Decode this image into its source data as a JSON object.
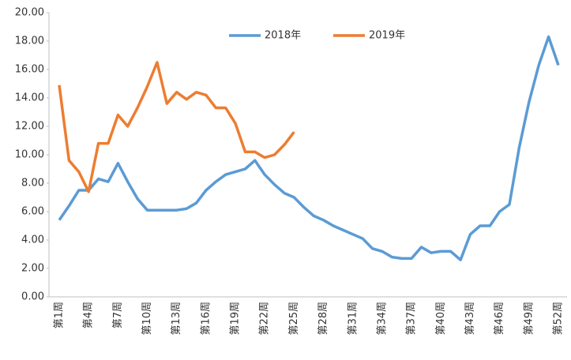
{
  "chart_data": {
    "type": "line",
    "categories": [
      "第1周",
      null,
      null,
      "第4周",
      null,
      null,
      "第7周",
      null,
      null,
      "第10周",
      null,
      null,
      "第13周",
      null,
      null,
      "第16周",
      null,
      null,
      "第19周",
      null,
      null,
      "第22周",
      null,
      null,
      "第25周",
      null,
      null,
      "第28周",
      null,
      null,
      "第31周",
      null,
      null,
      "第34周",
      null,
      null,
      "第37周",
      null,
      null,
      "第40周",
      null,
      null,
      "第43周",
      null,
      null,
      "第46周",
      null,
      null,
      "第49周",
      null,
      null,
      "第52周"
    ],
    "series": [
      {
        "name": "2018年",
        "color": "#5b9bd5",
        "values": [
          5.4,
          6.4,
          7.5,
          7.5,
          8.3,
          8.1,
          9.4,
          8.1,
          6.9,
          6.1,
          6.1,
          6.1,
          6.1,
          6.2,
          6.6,
          7.5,
          8.1,
          8.6,
          8.8,
          9.0,
          9.6,
          8.6,
          7.9,
          7.3,
          7.0,
          6.3,
          5.7,
          5.4,
          5.0,
          4.7,
          4.4,
          4.1,
          3.4,
          3.2,
          2.8,
          2.7,
          2.7,
          3.5,
          3.1,
          3.2,
          3.2,
          2.6,
          4.4,
          5.0,
          5.0,
          6.0,
          6.5,
          10.5,
          13.7,
          16.3,
          18.3,
          16.3
        ]
      },
      {
        "name": "2019年",
        "color": "#ed7d31",
        "values": [
          14.9,
          9.6,
          8.8,
          7.4,
          10.8,
          10.8,
          12.8,
          12.0,
          13.3,
          14.8,
          16.5,
          13.6,
          14.4,
          13.9,
          14.4,
          14.2,
          13.3,
          13.3,
          12.2,
          10.2,
          10.2,
          9.8,
          10.0,
          10.7,
          11.6,
          null,
          null,
          null,
          null,
          null,
          null,
          null,
          null,
          null,
          null,
          null,
          null,
          null,
          null,
          null,
          null,
          null,
          null,
          null,
          null,
          null,
          null,
          null,
          null,
          null,
          null,
          null
        ]
      }
    ],
    "ylim": [
      0,
      20
    ],
    "yticks": [
      {
        "value": 0,
        "label": "0.00"
      },
      {
        "value": 2,
        "label": "2.00"
      },
      {
        "value": 4,
        "label": "4.00"
      },
      {
        "value": 6,
        "label": "6.00"
      },
      {
        "value": 8,
        "label": "8.00"
      },
      {
        "value": 10,
        "label": "10.00"
      },
      {
        "value": 12,
        "label": "12.00"
      },
      {
        "value": 14,
        "label": "14.00"
      },
      {
        "value": 16,
        "label": "16.00"
      },
      {
        "value": 18,
        "label": "18.00"
      },
      {
        "value": 20,
        "label": "20.00"
      }
    ],
    "grid": false
  }
}
